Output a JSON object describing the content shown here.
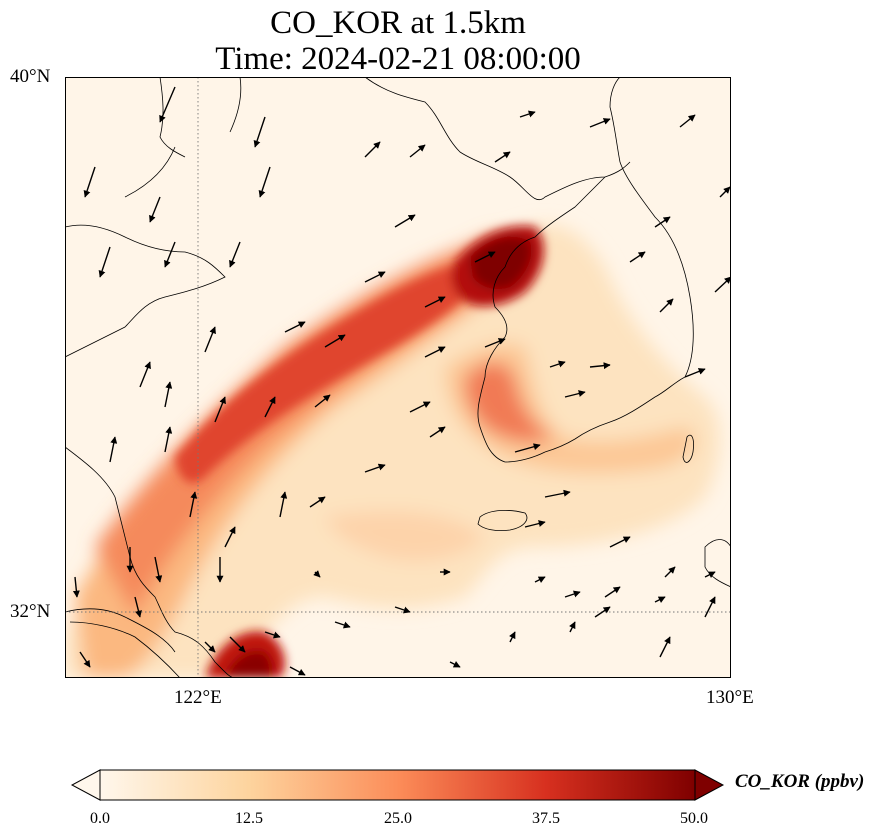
{
  "title": {
    "line1": "CO_KOR at 1.5km",
    "line2": "Time: 2024-02-21 08:00:00"
  },
  "map": {
    "extent": {
      "lon_min": 120,
      "lon_max": 130,
      "lat_min": 31,
      "lat_max": 40
    },
    "lat_labels": [
      "40°N",
      "32°N"
    ],
    "lon_labels": [
      "122°E",
      "130°E"
    ],
    "gridlines": {
      "lon": 122,
      "lat": 32,
      "style": "dotted"
    },
    "plume": {
      "units": "ppbv",
      "colormap": "OrRd",
      "max_area": {
        "lon": 126.5,
        "lat": 37.5,
        "value": 50
      },
      "secondary_max": {
        "lon": 122.8,
        "lat": 31.2,
        "value": 48
      }
    },
    "wind_vectors": "southwesterly-to-westerly flow, arrows pointing NE over sea"
  },
  "colorbar": {
    "label": "CO_KOR (ppbv)",
    "ticks": [
      "0.0",
      "12.5",
      "25.0",
      "37.5",
      "50.0"
    ],
    "min": 0,
    "max": 50,
    "extend": "both",
    "colors": [
      "#fff7ec",
      "#fdd49e",
      "#fc8d59",
      "#d7301f",
      "#7f0000"
    ]
  }
}
